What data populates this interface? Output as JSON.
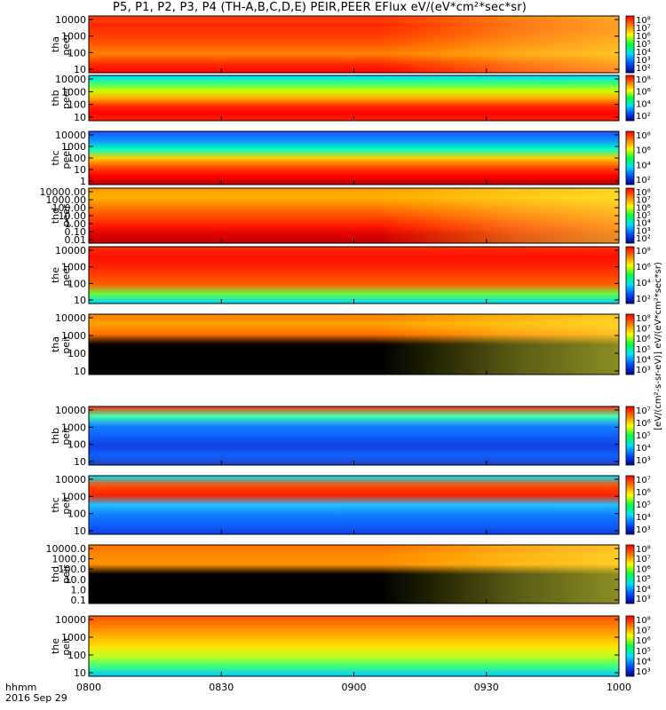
{
  "chart_data": {
    "type": "heatmap",
    "title": "P5, P1, P2, P3, P4 (TH-A,B,C,D,E) PEIR,PEER EFlux eV/(eV*cm²*sec*sr)",
    "x_ticks": [
      "0800",
      "0830",
      "0900",
      "0930",
      "1000"
    ],
    "x_range": [
      "0800",
      "1000"
    ],
    "x_footer": [
      "hhmm",
      "2016 Sep 29"
    ],
    "colorbar_label": "[eV/(cm²-s-sr-eV)]",
    "colorbar_label_repeat": "eV/(eV*cm²*sec*sr)",
    "panels": [
      {
        "probe": "tha",
        "species": "peer",
        "yticks": [
          "10",
          "100",
          "1000",
          "10000"
        ],
        "ylog": true,
        "cbar_ticks": [
          "10⁸",
          "10⁷",
          "10⁶",
          "10⁵",
          "10⁴",
          "10³",
          "10²"
        ]
      },
      {
        "probe": "thb",
        "species": "peer",
        "yticks": [
          "10",
          "100",
          "1000",
          "10000"
        ],
        "ylog": true,
        "cbar_ticks": [
          "10⁸",
          "10⁶",
          "10⁴",
          "10²"
        ]
      },
      {
        "probe": "thc",
        "species": "peer",
        "yticks": [
          "1",
          "10",
          "100",
          "1000",
          "10000"
        ],
        "ylog": true,
        "cbar_ticks": [
          "10⁸",
          "10⁶",
          "10⁴",
          "10²"
        ]
      },
      {
        "probe": "thd",
        "species": "peer",
        "yticks": [
          "0.01",
          "0.10",
          "1.00",
          "10.00",
          "100.00",
          "1000.00",
          "10000.00"
        ],
        "ylog": true,
        "cbar_ticks": [
          "10⁸",
          "10⁷",
          "10⁶",
          "10⁵",
          "10⁴",
          "10³",
          "10²"
        ]
      },
      {
        "probe": "the",
        "species": "peer",
        "yticks": [
          "10",
          "100",
          "1000",
          "10000"
        ],
        "ylog": true,
        "cbar_ticks": [
          "10⁸",
          "10⁶",
          "10⁴",
          "10²"
        ]
      },
      {
        "probe": "tha",
        "species": "peir",
        "yticks": [
          "10",
          "100",
          "1000",
          "10000"
        ],
        "ylog": true,
        "cbar_ticks": [
          "10⁸",
          "10⁷",
          "10⁶",
          "10⁵",
          "10⁴",
          "10³"
        ]
      },
      {
        "probe": "thb",
        "species": "peir",
        "yticks": [
          "10",
          "100",
          "1000",
          "10000"
        ],
        "ylog": true,
        "cbar_ticks": [
          "10⁷",
          "10⁶",
          "10⁵",
          "10⁴",
          "10³"
        ]
      },
      {
        "probe": "thc",
        "species": "peir",
        "yticks": [
          "10",
          "100",
          "1000",
          "10000"
        ],
        "ylog": true,
        "cbar_ticks": [
          "10⁷",
          "10⁶",
          "10⁵",
          "10⁴",
          "10³"
        ]
      },
      {
        "probe": "thd",
        "species": "peir",
        "yticks": [
          "0.1",
          "1.0",
          "10.0",
          "100.0",
          "1000.0",
          "10000.0"
        ],
        "ylog": true,
        "cbar_ticks": [
          "10⁸",
          "10⁷",
          "10⁶",
          "10⁵",
          "10⁴",
          "10³"
        ]
      },
      {
        "probe": "the",
        "species": "peir",
        "yticks": [
          "10",
          "100",
          "1000",
          "10000"
        ],
        "ylog": true,
        "cbar_ticks": [
          "10⁸",
          "10⁷",
          "10⁶",
          "10⁵",
          "10⁴",
          "10³"
        ]
      }
    ]
  }
}
